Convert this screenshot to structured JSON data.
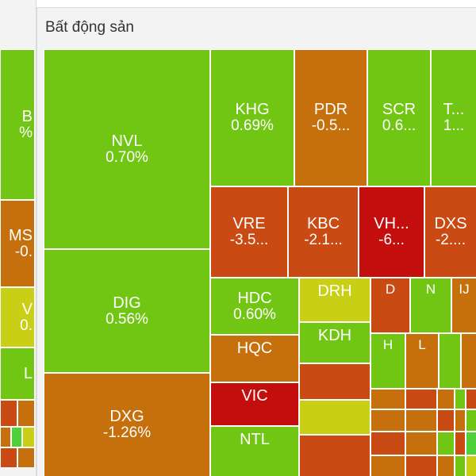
{
  "panel": {
    "title": "Bất động sản"
  },
  "colors": {
    "up_green": "#71c614",
    "up_bright": "#4fd13c",
    "flat_yellow": "#c8cf14",
    "down_orange": "#c5700c",
    "down_red_orange": "#c94a12",
    "down_red": "#c40e0e"
  },
  "left_panel_tiles": [
    {
      "label": "B",
      "value": "%"
    },
    {
      "label": "MS",
      "value": "-0."
    },
    {
      "label": "V",
      "value": "0."
    },
    {
      "label": "L",
      "value": ""
    }
  ],
  "tiles": [
    {
      "label": "NVL",
      "value": "0.70%"
    },
    {
      "label": "DIG",
      "value": "0.56%"
    },
    {
      "label": "DXG",
      "value": "-1.26%"
    },
    {
      "label": "KHG",
      "value": "0.69%"
    },
    {
      "label": "PDR",
      "value": "-0.5..."
    },
    {
      "label": "SCR",
      "value": "0.6..."
    },
    {
      "label": "T...",
      "value": "1..."
    },
    {
      "label": "VRE",
      "value": "-3.5..."
    },
    {
      "label": "KBC",
      "value": "-2.1..."
    },
    {
      "label": "VH...",
      "value": "-6..."
    },
    {
      "label": "DXS",
      "value": "-2...."
    },
    {
      "label": "HDC",
      "value": "0.60%"
    },
    {
      "label": "HQC",
      "value": ""
    },
    {
      "label": "VIC",
      "value": ""
    },
    {
      "label": "NTL",
      "value": ""
    },
    {
      "label": "DRH",
      "value": ""
    },
    {
      "label": "KDH",
      "value": ""
    },
    {
      "label": "D",
      "value": ""
    },
    {
      "label": "N",
      "value": ""
    },
    {
      "label": "IJ",
      "value": ""
    },
    {
      "label": "H",
      "value": ""
    },
    {
      "label": "L",
      "value": ""
    }
  ]
}
